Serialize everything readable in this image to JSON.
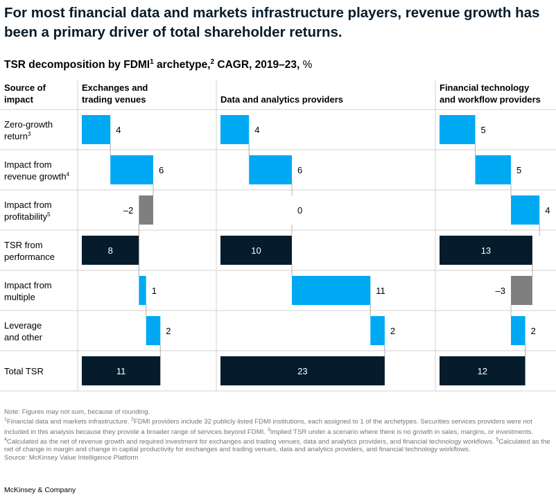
{
  "headline": "For most financial data and markets infrastructure players, revenue growth has been a primary driver of total shareholder returns.",
  "subtitle": {
    "text_a": "TSR decomposition by FDMI",
    "sup_a": "1",
    "text_b": " archetype,",
    "sup_b": "2",
    "text_c": " CAGR, 2019–23,",
    "unit": " %"
  },
  "colors": {
    "positive": "#00a9f4",
    "negative": "#7f7f7f",
    "total": "#051c2c",
    "gridline": "#d0d0d0",
    "connector": "#b3b3b3"
  },
  "chart_data": {
    "type": "waterfall",
    "row_header": {
      "line1": "Source of",
      "line2": "impact"
    },
    "rows": [
      {
        "line1": "Zero-growth",
        "line2": "return",
        "sup": "3",
        "kind": "delta"
      },
      {
        "line1": "Impact from",
        "line2": "revenue growth",
        "sup": "4",
        "kind": "delta"
      },
      {
        "line1": "Impact from",
        "line2": "profitability",
        "sup": "5",
        "kind": "delta"
      },
      {
        "line1": "TSR from",
        "line2": "performance",
        "sup": "",
        "kind": "total"
      },
      {
        "line1": "Impact from",
        "line2": "multiple",
        "sup": "",
        "kind": "delta"
      },
      {
        "line1": "Leverage",
        "line2": "and other",
        "sup": "",
        "kind": "delta"
      },
      {
        "line1": "Total TSR",
        "line2": "",
        "sup": "",
        "kind": "total"
      }
    ],
    "columns": [
      {
        "title_line1": "Exchanges and",
        "title_line2": "trading venues",
        "values": [
          4,
          6,
          -2,
          8,
          1,
          2,
          11
        ],
        "labels": [
          "4",
          "6",
          "–2",
          "8",
          "1",
          "2",
          "11"
        ]
      },
      {
        "title_line1": "Data and analytics providers",
        "title_line2": "",
        "values": [
          4,
          6,
          0,
          10,
          11,
          2,
          23
        ],
        "labels": [
          "4",
          "6",
          "0",
          "10",
          "11",
          "2",
          "23"
        ]
      },
      {
        "title_line1": "Financial technology",
        "title_line2": "and workflow providers",
        "values": [
          5,
          5,
          4,
          13,
          -3,
          2,
          12
        ],
        "labels": [
          "5",
          "5",
          "4",
          "13",
          "–3",
          "2",
          "12"
        ]
      }
    ]
  },
  "notes": {
    "note": "Note: Figures may not sum, because of rounding.",
    "fn1_sup": "1",
    "fn1": "Financial data and markets infrastructure. ",
    "fn2_sup": "2",
    "fn2": "FDMI providers include 32 publicly listed FDMI institutions, each assigned to 1 of the archetypes. Securities services providers were not included in this analysis because they provide a broader range of services beyond FDMI. ",
    "fn3_sup": "3",
    "fn3": "Implied TSR under a scenario where there is no growth in sales, margins, or investments. ",
    "fn4_sup": "4",
    "fn4": "Calculated as the net of revenue growth and required investment for exchanges and trading venues, data and analytics providers, and financial technology workflows. ",
    "fn5_sup": "5",
    "fn5": "Calculated as the net of change in margin and change in capital productivity for exchanges and trading venues, data and analytics providers, and financial technology workflows.",
    "source": "Source: McKinsey Value Intelligence Platform"
  },
  "brand": "McKinsey & Company"
}
